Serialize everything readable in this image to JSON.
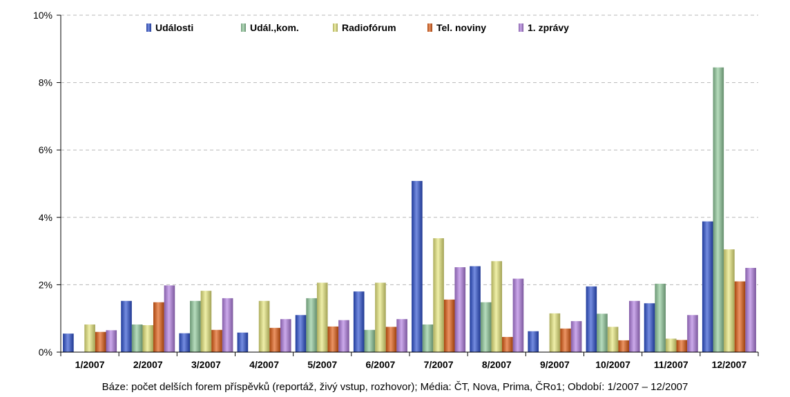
{
  "chart_data": {
    "type": "bar",
    "title": "",
    "xlabel": "",
    "ylabel": "",
    "ylim": [
      0,
      10
    ],
    "y_ticks": [
      "0%",
      "2%",
      "4%",
      "6%",
      "8%",
      "10%"
    ],
    "y_tick_values": [
      0,
      2,
      4,
      6,
      8,
      10
    ],
    "grid": true,
    "legend_position": "top",
    "categories": [
      "1/2007",
      "2/2007",
      "3/2007",
      "4/2007",
      "5/2007",
      "6/2007",
      "7/2007",
      "8/2007",
      "9/2007",
      "10/2007",
      "11/2007",
      "12/2007"
    ],
    "series": [
      {
        "name": "Události",
        "color": "#2b4fcf",
        "values": [
          0.55,
          1.52,
          0.56,
          0.58,
          1.1,
          1.8,
          5.08,
          2.55,
          0.62,
          1.95,
          1.45,
          3.88
        ]
      },
      {
        "name": "Udál.,kom.",
        "color": "#8fc99a",
        "values": [
          0.0,
          0.82,
          1.52,
          0.0,
          1.6,
          0.66,
          0.82,
          1.48,
          0.0,
          1.14,
          2.03,
          8.45
        ]
      },
      {
        "name": "Radiofórum",
        "color": "#e7e77a",
        "values": [
          0.82,
          0.8,
          1.82,
          1.52,
          2.06,
          2.06,
          3.38,
          2.7,
          1.15,
          0.75,
          0.4,
          3.05
        ]
      },
      {
        "name": "Tel. noviny",
        "color": "#e05a10",
        "values": [
          0.6,
          1.48,
          0.66,
          0.72,
          0.76,
          0.75,
          1.56,
          0.45,
          0.7,
          0.35,
          0.36,
          2.1
        ]
      },
      {
        "name": "1. zprávy",
        "color": "#b07ce0",
        "values": [
          0.65,
          1.98,
          1.6,
          0.98,
          0.95,
          0.98,
          2.52,
          2.18,
          0.92,
          1.52,
          1.1,
          2.5
        ]
      }
    ],
    "caption": "Báze: počet delších forem příspěvků (reportáž, živý vstup, rozhovor); Média: ČT, Nova, Prima, ČRo1; Období: 1/2007 – 12/2007"
  }
}
